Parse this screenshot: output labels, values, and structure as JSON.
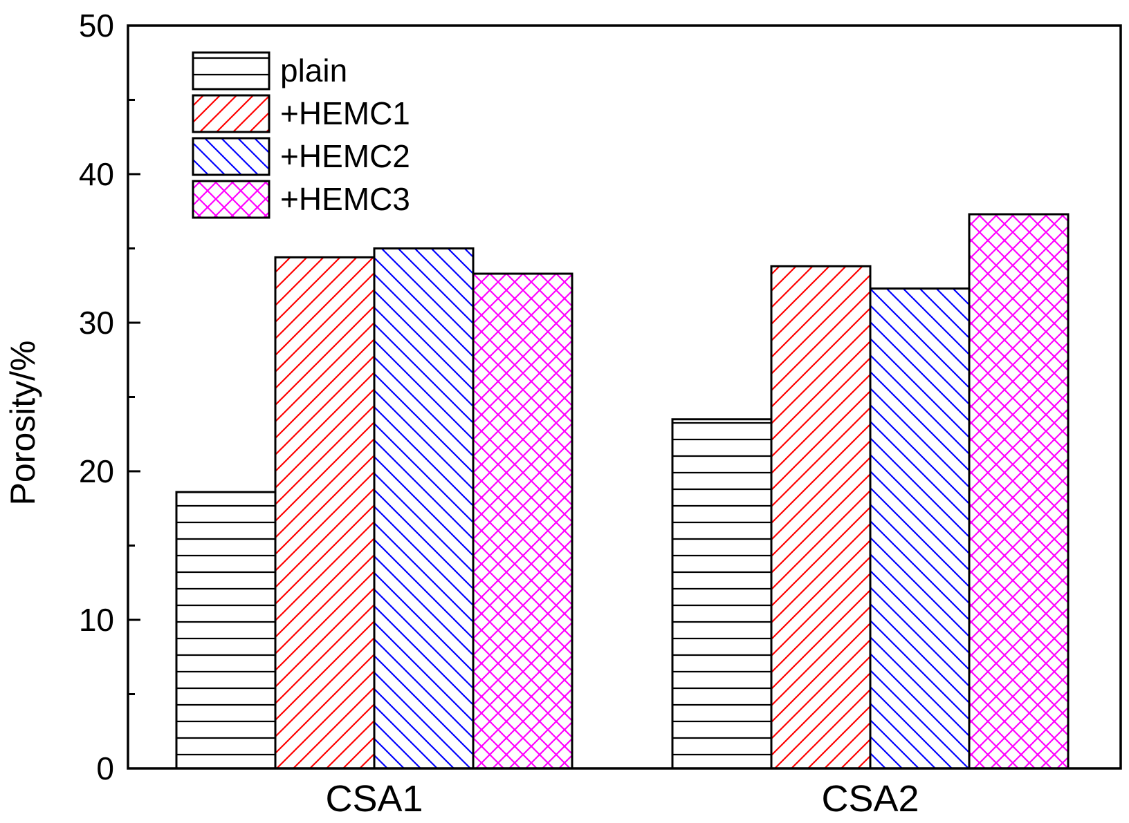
{
  "chart_data": {
    "type": "bar",
    "title": "",
    "xlabel": "",
    "ylabel": "Porosity/%",
    "ylim": [
      0,
      50
    ],
    "yticks": [
      0,
      10,
      20,
      30,
      40,
      50
    ],
    "grid": false,
    "legend_position": "top-left",
    "categories": [
      "CSA1",
      "CSA2"
    ],
    "series": [
      {
        "name": "plain",
        "values": [
          18.6,
          23.5
        ],
        "color": "#000000",
        "pattern": "horizontal"
      },
      {
        "name": "+HEMC1",
        "values": [
          34.4,
          33.8
        ],
        "color": "#ff0000",
        "pattern": "diagonal-up"
      },
      {
        "name": "+HEMC2",
        "values": [
          35.0,
          32.3
        ],
        "color": "#0000ff",
        "pattern": "diagonal-down"
      },
      {
        "name": "+HEMC3",
        "values": [
          33.3,
          37.3
        ],
        "color": "#ff00ff",
        "pattern": "crosshatch"
      }
    ]
  }
}
